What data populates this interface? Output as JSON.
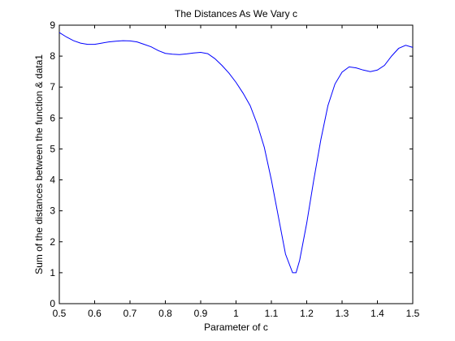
{
  "chart_data": {
    "type": "line",
    "title": "The Distances As We Vary c",
    "xlabel": "Parameter of c",
    "ylabel": "Sum of the distances between the function & data1",
    "xlim": [
      0.5,
      1.5
    ],
    "ylim": [
      0,
      9
    ],
    "xticks": [
      0.5,
      0.6,
      0.7,
      0.8,
      0.9,
      1,
      1.1,
      1.2,
      1.3,
      1.4,
      1.5
    ],
    "xtick_labels": [
      "0.5",
      "0.6",
      "0.7",
      "0.8",
      "0.9",
      "1",
      "1.1",
      "1.2",
      "1.3",
      "1.4",
      "1.5"
    ],
    "yticks": [
      0,
      1,
      2,
      3,
      4,
      5,
      6,
      7,
      8,
      9
    ],
    "ytick_labels": [
      "0",
      "1",
      "2",
      "3",
      "4",
      "5",
      "6",
      "7",
      "8",
      "9"
    ],
    "grid": false,
    "legend": "none",
    "colors": {
      "line": "#0000ff",
      "axes": "#000000",
      "background": "#ffffff"
    },
    "series": [
      {
        "x": [
          0.5,
          0.52,
          0.54,
          0.56,
          0.58,
          0.6,
          0.62,
          0.64,
          0.66,
          0.68,
          0.7,
          0.72,
          0.74,
          0.76,
          0.78,
          0.8,
          0.82,
          0.84,
          0.86,
          0.88,
          0.9,
          0.92,
          0.94,
          0.96,
          0.98,
          1.0,
          1.02,
          1.04,
          1.06,
          1.08,
          1.1,
          1.12,
          1.14,
          1.16,
          1.17,
          1.18,
          1.2,
          1.22,
          1.24,
          1.26,
          1.28,
          1.3,
          1.32,
          1.34,
          1.36,
          1.38,
          1.4,
          1.42,
          1.44,
          1.46,
          1.48,
          1.5
        ],
        "y": [
          8.76,
          8.62,
          8.5,
          8.42,
          8.38,
          8.38,
          8.42,
          8.46,
          8.48,
          8.5,
          8.49,
          8.46,
          8.38,
          8.3,
          8.18,
          8.09,
          8.06,
          8.05,
          8.07,
          8.1,
          8.12,
          8.08,
          7.92,
          7.7,
          7.45,
          7.15,
          6.8,
          6.4,
          5.8,
          5.05,
          4.0,
          2.8,
          1.6,
          1.0,
          1.0,
          1.4,
          2.6,
          4.0,
          5.3,
          6.4,
          7.1,
          7.48,
          7.65,
          7.62,
          7.55,
          7.5,
          7.55,
          7.7,
          8.0,
          8.25,
          8.35,
          8.28
        ]
      }
    ]
  }
}
